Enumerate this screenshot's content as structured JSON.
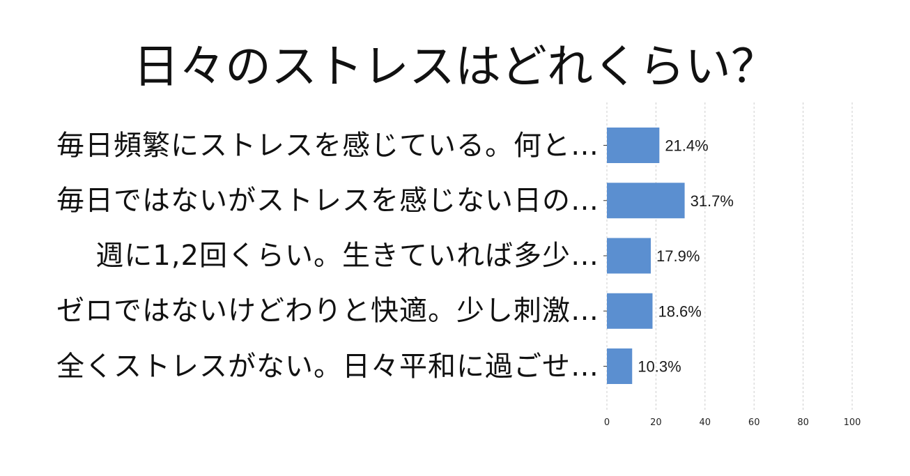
{
  "chart_data": {
    "type": "bar",
    "orientation": "horizontal",
    "title": "日々のストレスはどれくらい？",
    "categories": [
      "毎日頻繁にストレスを感じている。何と…",
      "毎日ではないがストレスを感じない日の…",
      "週に1,2回くらい。生きていれば多少…",
      "ゼロではないけどわりと快適。少し刺激…",
      "全くストレスがない。日々平和に過ごせ…"
    ],
    "values": [
      21.4,
      31.7,
      17.9,
      18.6,
      10.3
    ],
    "value_labels": [
      "21.4%",
      "31.7%",
      "17.9%",
      "18.6%",
      "10.3%"
    ],
    "xlim": [
      0,
      100
    ],
    "x_ticks": [
      0,
      20,
      40,
      60,
      80,
      100
    ],
    "x_tick_labels": [
      "0",
      "20",
      "40",
      "60",
      "80",
      "100"
    ],
    "grid": true,
    "bar_color": "#5b8fd0",
    "grid_color": "#cccccc"
  }
}
